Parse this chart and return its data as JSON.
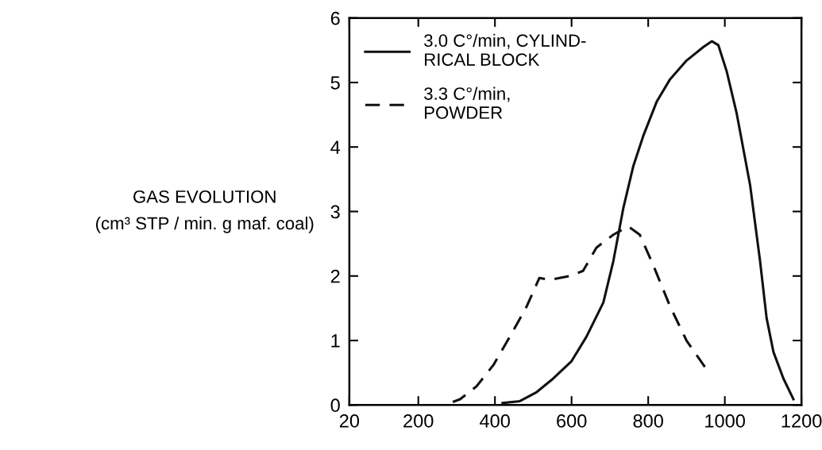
{
  "chart_data": {
    "type": "line",
    "ylabel": "GAS EVOLUTION\n(cm³ STP / min. g maf. coal)",
    "xlim": [
      20,
      1200
    ],
    "xticks": [
      20,
      200,
      400,
      600,
      800,
      1000,
      1200
    ],
    "ylim": [
      0,
      6
    ],
    "yticks": [
      0,
      1,
      2,
      3,
      4,
      5,
      6
    ],
    "grid": false,
    "legend": "top left",
    "marker": "none",
    "series": [
      {
        "name": "3.0 C°/min, CYLIND-\nRICAL BLOCK",
        "color": "#111111",
        "line_style": "solid",
        "x": [
          420,
          465,
          509,
          552,
          600,
          639,
          683,
          709,
          735,
          761,
          787,
          822,
          857,
          900,
          944,
          966,
          983,
          1005,
          1031,
          1066,
          1092,
          1109,
          1127,
          1153,
          1179
        ],
        "values": [
          0.03,
          0.06,
          0.2,
          0.41,
          0.68,
          1.06,
          1.59,
          2.23,
          3.05,
          3.7,
          4.17,
          4.7,
          5.05,
          5.34,
          5.55,
          5.64,
          5.58,
          5.17,
          4.52,
          3.41,
          2.23,
          1.35,
          0.82,
          0.41,
          0.09
        ]
      },
      {
        "name": "3.3 C°/min,\nPOWDER",
        "color": "#111111",
        "line_style": "dashed",
        "x": [
          274,
          309,
          352,
          396,
          439,
          483,
          516,
          543,
          596,
          630,
          665,
          709,
          748,
          778,
          813,
          857,
          900,
          948
        ],
        "values": [
          0.01,
          0.09,
          0.29,
          0.62,
          1.06,
          1.53,
          1.97,
          1.94,
          2.0,
          2.08,
          2.44,
          2.64,
          2.77,
          2.64,
          2.17,
          1.53,
          1.0,
          0.59
        ]
      }
    ]
  }
}
